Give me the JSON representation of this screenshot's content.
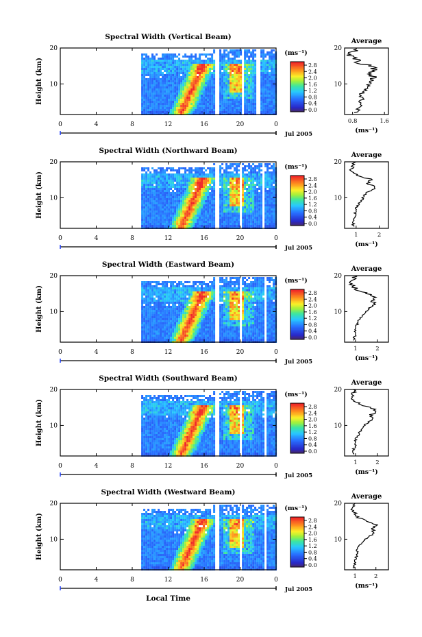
{
  "figure": {
    "x_common_label": "Local Time",
    "date_label": "Jul 2005",
    "colorbar_unit": "(ms⁻¹)",
    "profile_title": "Average",
    "profile_xlabel": "(ms⁻¹)",
    "ylabel": "Height (km)"
  },
  "chart_data": [
    {
      "type": "heatmap",
      "title": "Spectral Width (Vertical Beam)",
      "xlabel": "Local Time",
      "ylabel": "Height (km)",
      "x_ticks": [
        "0",
        "4",
        "8",
        "12",
        "16",
        "20",
        "0"
      ],
      "xlim": [
        0,
        24
      ],
      "ylim": [
        1.5,
        20
      ],
      "y_ticks": [
        10,
        20
      ],
      "data_start_hour": 9,
      "gap_hours": [
        [
          17.2,
          17.6
        ],
        [
          20.0,
          20.2
        ],
        [
          21.8,
          22.2
        ]
      ],
      "colorbar": {
        "ticks": [
          "0.0",
          "0.4",
          "0.8",
          "1.2",
          "1.6",
          "2.0",
          "2.4",
          "2.8"
        ],
        "range": [
          0,
          2.8
        ]
      },
      "profile": {
        "title": "Average",
        "xlabel": "(ms⁻¹)",
        "x_ticks": [
          0.8,
          1.6
        ],
        "xlim": [
          0.6,
          1.7
        ],
        "heights": [
          2,
          3,
          4,
          5,
          6,
          7,
          8,
          9,
          10,
          11,
          12,
          13,
          14,
          15,
          16,
          17,
          18,
          19,
          20
        ],
        "values": [
          0.9,
          0.95,
          1.0,
          1.0,
          1.05,
          1.0,
          1.1,
          1.15,
          1.2,
          1.3,
          1.35,
          1.2,
          1.4,
          1.25,
          0.95,
          0.85,
          0.75,
          0.8,
          0.9
        ]
      }
    },
    {
      "type": "heatmap",
      "title": "Spectral Width (Northward Beam)",
      "xlabel": "Local Time",
      "ylabel": "Height (km)",
      "x_ticks": [
        "0",
        "4",
        "8",
        "12",
        "16",
        "20",
        "0"
      ],
      "xlim": [
        0,
        24
      ],
      "ylim": [
        1.5,
        20
      ],
      "y_ticks": [
        10,
        20
      ],
      "data_start_hour": 9,
      "gap_hours": [
        [
          17.2,
          17.6
        ],
        [
          19.8,
          20.0
        ],
        [
          22.3,
          22.6
        ]
      ],
      "colorbar": {
        "ticks": [
          "0.0",
          "0.4",
          "0.8",
          "1.2",
          "1.6",
          "2.0",
          "2.4",
          "2.8"
        ],
        "range": [
          0,
          2.8
        ]
      },
      "profile": {
        "title": "Average",
        "xlabel": "(ms⁻¹)",
        "x_ticks": [
          1,
          2
        ],
        "xlim": [
          0.5,
          2.4
        ],
        "heights": [
          2,
          3,
          4,
          5,
          6,
          7,
          8,
          9,
          10,
          11,
          12,
          13,
          14,
          15,
          16,
          17,
          18,
          19,
          20
        ],
        "values": [
          0.85,
          0.9,
          0.9,
          0.95,
          0.95,
          1.0,
          1.1,
          1.2,
          1.3,
          1.4,
          1.6,
          1.8,
          1.5,
          1.7,
          1.2,
          0.9,
          0.8,
          0.9,
          1.0
        ]
      }
    },
    {
      "type": "heatmap",
      "title": "Spectral Width (Eastward Beam)",
      "xlabel": "Local Time",
      "ylabel": "Height (km)",
      "x_ticks": [
        "0",
        "4",
        "8",
        "12",
        "16",
        "20",
        "0"
      ],
      "xlim": [
        0,
        24
      ],
      "ylim": [
        1.5,
        20
      ],
      "y_ticks": [
        10,
        20
      ],
      "data_start_hour": 9,
      "gap_hours": [
        [
          17.2,
          17.6
        ],
        [
          19.8,
          20.1
        ],
        [
          22.6,
          22.9
        ]
      ],
      "colorbar": {
        "ticks": [
          "0.0",
          "0.4",
          "0.8",
          "1.2",
          "1.6",
          "2.0",
          "2.4",
          "2.8"
        ],
        "range": [
          0,
          2.8
        ]
      },
      "profile": {
        "title": "Average",
        "xlabel": "(ms⁻¹)",
        "x_ticks": [
          1,
          2
        ],
        "xlim": [
          0.5,
          2.5
        ],
        "heights": [
          2,
          3,
          4,
          5,
          6,
          7,
          8,
          9,
          10,
          11,
          12,
          13,
          14,
          15,
          16,
          17,
          18,
          19,
          20
        ],
        "values": [
          0.9,
          0.95,
          1.0,
          1.0,
          1.05,
          1.1,
          1.2,
          1.3,
          1.5,
          1.6,
          1.9,
          1.7,
          2.0,
          1.5,
          1.1,
          0.9,
          0.8,
          0.9,
          1.0
        ]
      }
    },
    {
      "type": "heatmap",
      "title": "Spectral Width (Southward Beam)",
      "xlabel": "Local Time",
      "ylabel": "Height (km)",
      "x_ticks": [
        "0",
        "4",
        "8",
        "12",
        "16",
        "20",
        "0"
      ],
      "xlim": [
        0,
        24
      ],
      "ylim": [
        1.5,
        20
      ],
      "y_ticks": [
        10,
        20
      ],
      "data_start_hour": 9,
      "gap_hours": [
        [
          17.2,
          17.6
        ],
        [
          19.8,
          20.1
        ],
        [
          22.5,
          22.8
        ]
      ],
      "colorbar": {
        "ticks": [
          "0.0",
          "0.4",
          "0.8",
          "1.2",
          "1.6",
          "2.0",
          "2.4",
          "2.8"
        ],
        "range": [
          0,
          2.8
        ]
      },
      "profile": {
        "title": "Average",
        "xlabel": "(ms⁻¹)",
        "x_ticks": [
          1,
          2
        ],
        "xlim": [
          0.5,
          2.5
        ],
        "heights": [
          2,
          3,
          4,
          5,
          6,
          7,
          8,
          9,
          10,
          11,
          12,
          13,
          14,
          15,
          16,
          17,
          18,
          19,
          20
        ],
        "values": [
          0.9,
          0.9,
          0.95,
          1.0,
          1.0,
          1.1,
          1.15,
          1.3,
          1.4,
          1.6,
          1.8,
          1.7,
          2.0,
          1.6,
          1.2,
          0.95,
          0.85,
          0.9,
          0.9
        ]
      }
    },
    {
      "type": "heatmap",
      "title": "Spectral Width (Westward Beam)",
      "xlabel": "Local Time",
      "ylabel": "Height (km)",
      "x_ticks": [
        "0",
        "4",
        "8",
        "12",
        "16",
        "20",
        "0"
      ],
      "xlim": [
        0,
        24
      ],
      "ylim": [
        1.5,
        20
      ],
      "y_ticks": [
        10,
        20
      ],
      "data_start_hour": 9,
      "gap_hours": [
        [
          17.2,
          17.6
        ],
        [
          19.8,
          20.1
        ],
        [
          22.5,
          22.8
        ]
      ],
      "colorbar": {
        "ticks": [
          "0.0",
          "0.4",
          "0.8",
          "1.2",
          "1.6",
          "2.0",
          "2.4",
          "2.8"
        ],
        "range": [
          0,
          2.8
        ]
      },
      "profile": {
        "title": "Average",
        "xlabel": "(ms⁻¹)",
        "x_ticks": [
          1,
          2
        ],
        "xlim": [
          0.5,
          2.6
        ],
        "heights": [
          2,
          3,
          4,
          5,
          6,
          7,
          8,
          9,
          10,
          11,
          12,
          13,
          14,
          15,
          16,
          17,
          18,
          19,
          20
        ],
        "values": [
          0.95,
          1.0,
          1.0,
          1.05,
          1.1,
          1.1,
          1.2,
          1.35,
          1.5,
          1.7,
          1.9,
          1.8,
          2.1,
          1.6,
          1.2,
          1.0,
          0.9,
          1.0,
          1.0
        ]
      }
    }
  ]
}
